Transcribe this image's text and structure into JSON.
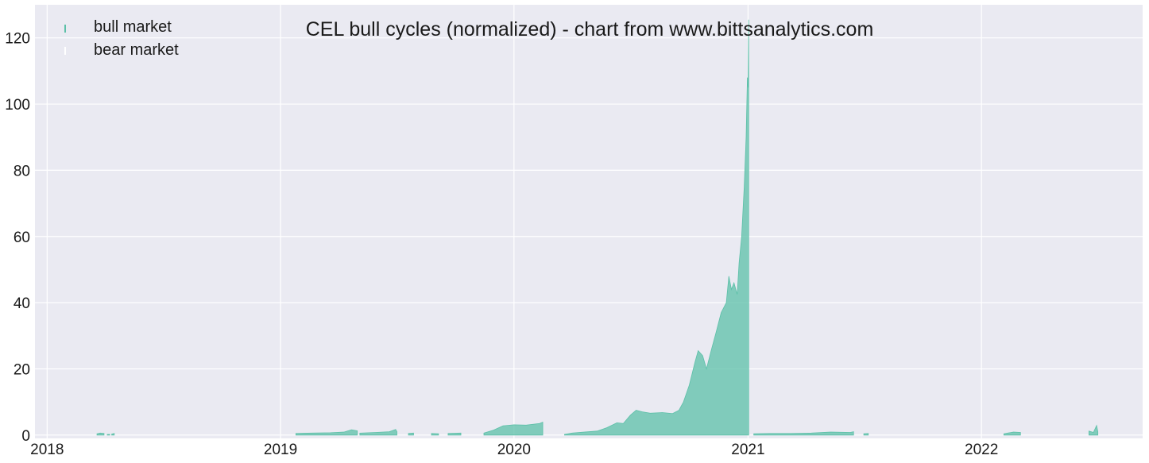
{
  "chart_data": {
    "type": "area",
    "title": "CEL bull cycles (normalized)  - chart from www.bittsanalytics.com",
    "xlabel": "",
    "ylabel": "",
    "ylim": [
      -1,
      130
    ],
    "xlim": [
      "2017-12-13",
      "2022-09-10"
    ],
    "grid": true,
    "legend_position": "top-left",
    "x_ticks": [
      {
        "date": "2018-01-01",
        "label": "2018"
      },
      {
        "date": "2019-01-01",
        "label": "2019"
      },
      {
        "date": "2020-01-01",
        "label": "2020"
      },
      {
        "date": "2021-01-01",
        "label": "2021"
      },
      {
        "date": "2022-01-01",
        "label": "2022"
      }
    ],
    "y_ticks": [
      0,
      20,
      40,
      60,
      80,
      100,
      120
    ],
    "y_tick_labels": [
      "0",
      "20",
      "40",
      "60",
      "80",
      "100",
      "120"
    ],
    "series": [
      {
        "name": "bull market",
        "color": "#5cc0a8",
        "segments": [
          [
            [
              "2018-03-20",
              0.4
            ],
            [
              "2018-03-25",
              0.6
            ],
            [
              "2018-03-31",
              0.5
            ]
          ],
          [
            [
              "2018-04-05",
              0.2
            ],
            [
              "2018-04-09",
              0.2
            ]
          ],
          [
            [
              "2018-04-12",
              0.3
            ],
            [
              "2018-04-16",
              0.5
            ]
          ],
          [
            [
              "2019-01-25",
              0.5
            ],
            [
              "2019-02-20",
              0.6
            ],
            [
              "2019-03-20",
              0.7
            ],
            [
              "2019-04-10",
              0.9
            ],
            [
              "2019-04-22",
              1.6
            ],
            [
              "2019-05-01",
              1.3
            ]
          ],
          [
            [
              "2019-05-05",
              0.6
            ],
            [
              "2019-05-30",
              0.8
            ],
            [
              "2019-06-20",
              1.0
            ],
            [
              "2019-06-30",
              1.7
            ],
            [
              "2019-07-02",
              1.0
            ]
          ],
          [
            [
              "2019-07-20",
              0.5
            ],
            [
              "2019-07-28",
              0.6
            ]
          ],
          [
            [
              "2019-08-25",
              0.5
            ],
            [
              "2019-09-05",
              0.4
            ]
          ],
          [
            [
              "2019-09-20",
              0.5
            ],
            [
              "2019-10-10",
              0.6
            ]
          ],
          [
            [
              "2019-11-15",
              0.6
            ],
            [
              "2019-11-30",
              1.5
            ],
            [
              "2019-12-15",
              2.8
            ],
            [
              "2020-01-01",
              3.1
            ],
            [
              "2020-01-20",
              3.0
            ],
            [
              "2020-02-10",
              3.5
            ],
            [
              "2020-02-15",
              3.9
            ]
          ],
          [
            [
              "2020-03-20",
              0.2
            ],
            [
              "2020-04-01",
              0.6
            ],
            [
              "2020-04-20",
              0.9
            ],
            [
              "2020-05-10",
              1.2
            ],
            [
              "2020-05-25",
              2.2
            ],
            [
              "2020-06-10",
              3.7
            ],
            [
              "2020-06-20",
              3.5
            ],
            [
              "2020-07-01",
              6.0
            ],
            [
              "2020-07-10",
              7.5
            ],
            [
              "2020-07-20",
              7.0
            ],
            [
              "2020-08-01",
              6.6
            ],
            [
              "2020-08-20",
              6.8
            ],
            [
              "2020-09-05",
              6.5
            ],
            [
              "2020-09-15",
              7.5
            ],
            [
              "2020-09-22",
              10.0
            ],
            [
              "2020-10-01",
              15.0
            ],
            [
              "2020-10-10",
              22.0
            ],
            [
              "2020-10-15",
              25.5
            ],
            [
              "2020-10-22",
              24.0
            ],
            [
              "2020-10-28",
              20.0
            ],
            [
              "2020-11-05",
              26.0
            ],
            [
              "2020-11-12",
              31.0
            ],
            [
              "2020-11-20",
              37.0
            ],
            [
              "2020-11-28",
              40.0
            ],
            [
              "2020-12-02",
              48.0
            ],
            [
              "2020-12-06",
              44.0
            ],
            [
              "2020-12-10",
              46.0
            ],
            [
              "2020-12-15",
              42.5
            ],
            [
              "2020-12-18",
              52.0
            ],
            [
              "2020-12-22",
              60.0
            ],
            [
              "2020-12-26",
              75.0
            ],
            [
              "2020-12-29",
              90.0
            ],
            [
              "2020-12-31",
              108.0
            ],
            [
              "2021-01-01",
              105.0
            ],
            [
              "2021-01-02",
              125.5
            ]
          ],
          [
            [
              "2021-01-10",
              0.4
            ],
            [
              "2021-02-05",
              0.5
            ],
            [
              "2021-03-10",
              0.5
            ],
            [
              "2021-04-10",
              0.6
            ],
            [
              "2021-05-10",
              0.9
            ],
            [
              "2021-06-10",
              0.8
            ],
            [
              "2021-06-15",
              1.0
            ]
          ],
          [
            [
              "2021-07-01",
              0.4
            ],
            [
              "2021-07-08",
              0.5
            ]
          ],
          [
            [
              "2022-02-05",
              0.4
            ],
            [
              "2022-02-20",
              0.9
            ],
            [
              "2022-03-03",
              0.8
            ]
          ],
          [
            [
              "2022-06-18",
              1.2
            ],
            [
              "2022-06-25",
              0.8
            ],
            [
              "2022-06-30",
              2.9
            ],
            [
              "2022-07-02",
              1.0
            ]
          ]
        ]
      },
      {
        "name": "bear market",
        "color": "#ffffff",
        "segments": []
      }
    ]
  }
}
